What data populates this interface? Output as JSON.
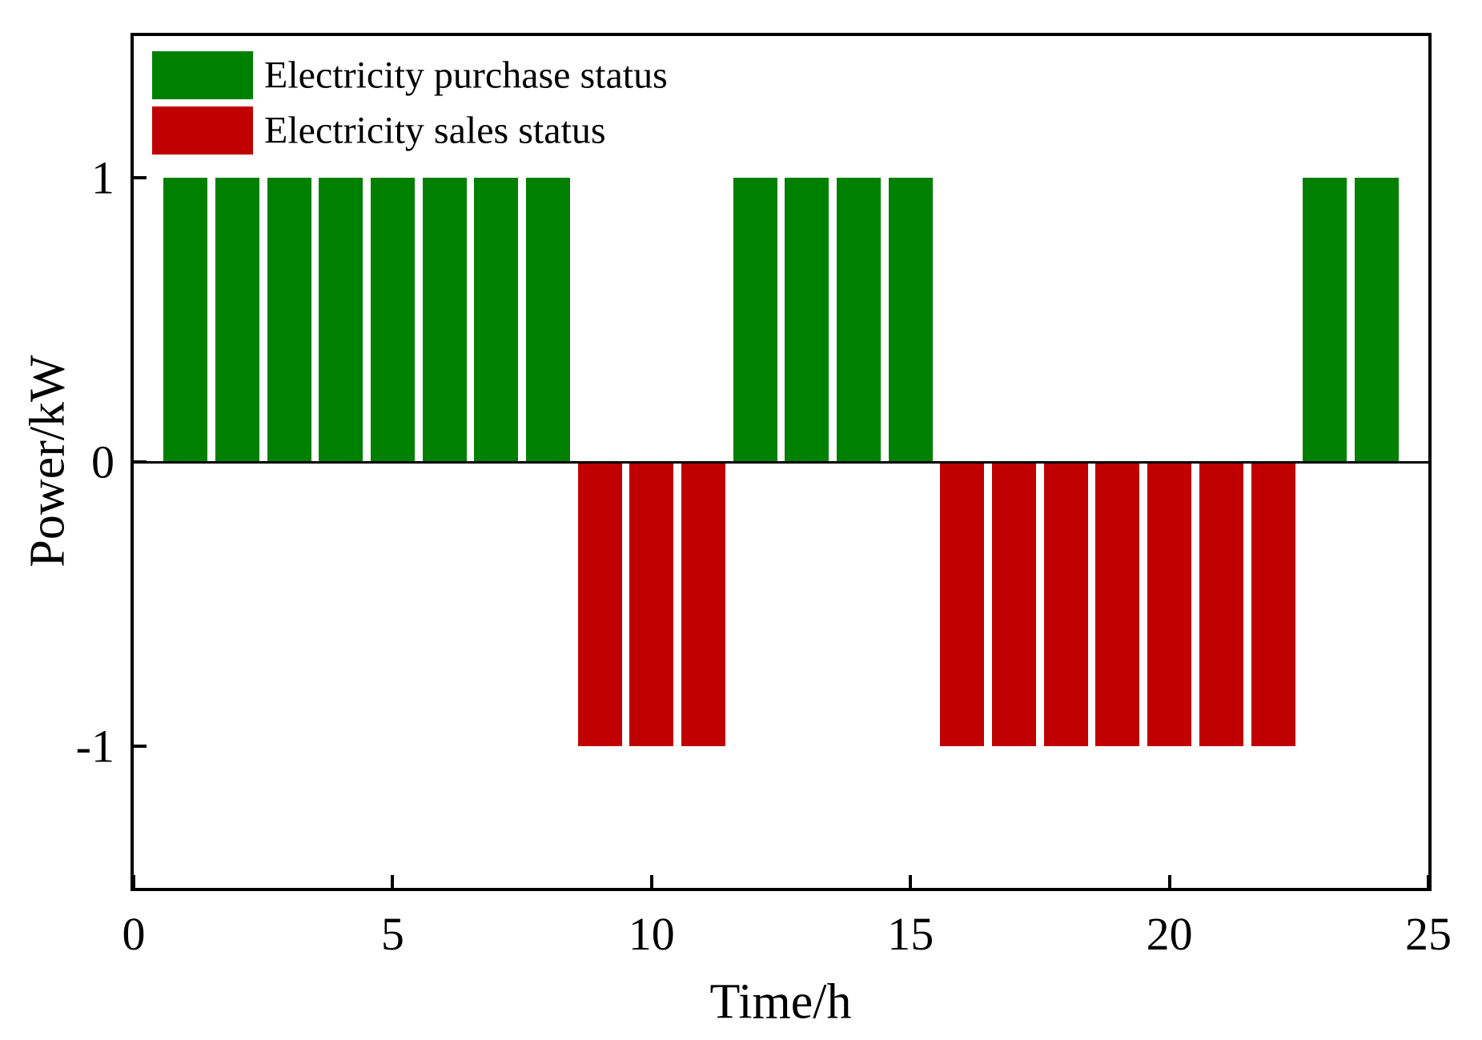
{
  "colors": {
    "purchase": "#008000",
    "sales": "#c00000",
    "axis": "#000000",
    "background": "#ffffff"
  },
  "legend": {
    "items": [
      {
        "label": "Electricity purchase status",
        "color": "#008000"
      },
      {
        "label": "Electricity sales status",
        "color": "#c00000"
      }
    ]
  },
  "chart_data": {
    "type": "bar",
    "title": "",
    "xlabel": "Time/h",
    "ylabel": "Power/kW",
    "xlim": [
      0,
      25
    ],
    "ylim": [
      -1.5,
      1.5
    ],
    "x_ticks": [
      "0",
      "5",
      "10",
      "15",
      "20",
      "25"
    ],
    "x_tick_values": [
      0,
      5,
      10,
      15,
      20,
      25
    ],
    "y_ticks": [
      "1",
      "0",
      "-1"
    ],
    "y_tick_values": [
      1,
      0,
      -1
    ],
    "bar_width": 0.85,
    "grid": false,
    "zero_line": true,
    "legend_position": "upper-left",
    "hours": [
      1,
      2,
      3,
      4,
      5,
      6,
      7,
      8,
      9,
      10,
      11,
      12,
      13,
      14,
      15,
      16,
      17,
      18,
      19,
      20,
      21,
      22,
      23,
      24
    ],
    "series": [
      {
        "name": "Electricity purchase status",
        "color": "#008000",
        "values": [
          1,
          1,
          1,
          1,
          1,
          1,
          1,
          1,
          0,
          0,
          0,
          1,
          1,
          1,
          1,
          0,
          0,
          0,
          0,
          0,
          0,
          0,
          1,
          1
        ]
      },
      {
        "name": "Electricity sales status",
        "color": "#c00000",
        "values": [
          0,
          0,
          0,
          0,
          0,
          0,
          0,
          0,
          -1,
          -1,
          -1,
          0,
          0,
          0,
          0,
          -1,
          -1,
          -1,
          -1,
          -1,
          -1,
          -1,
          0,
          0
        ]
      }
    ]
  }
}
